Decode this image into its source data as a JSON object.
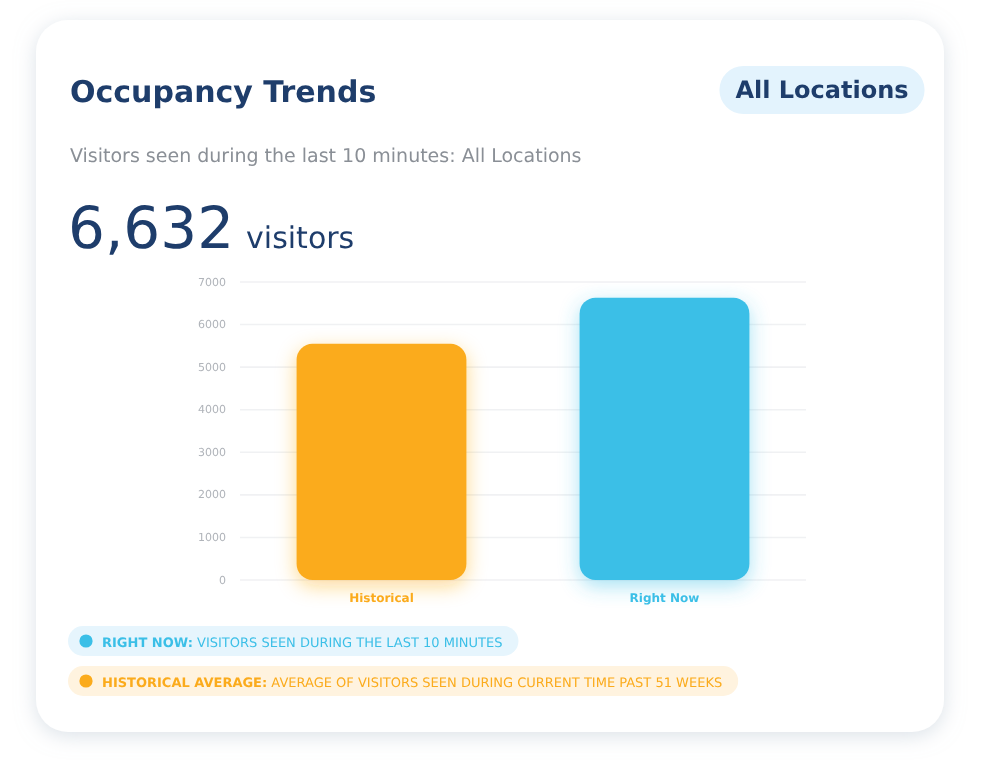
{
  "chart_data": {
    "type": "bar",
    "title": "Occupancy Trends",
    "subtitle": "Visitors seen during the last 10 minutes: All Locations",
    "categories": [
      "Historical",
      "Right Now"
    ],
    "values": [
      5550,
      6632
    ],
    "colors": [
      "#fbab1c",
      "#3bbfe7"
    ],
    "ylim": [
      0,
      7000
    ],
    "yticks": [
      0,
      1000,
      2000,
      3000,
      4000,
      5000,
      6000,
      7000
    ],
    "grid": "y",
    "annotations": [
      "All Locations",
      "6,632 visitors",
      "RIGHT NOW: VISITORS SEEN DURING THE LAST 10 MINUTES",
      "HISTORICAL AVERAGE: AVERAGE OF VISITORS SEEN DURING CURRENT TIME PAST 51 WEEKS"
    ]
  }
}
